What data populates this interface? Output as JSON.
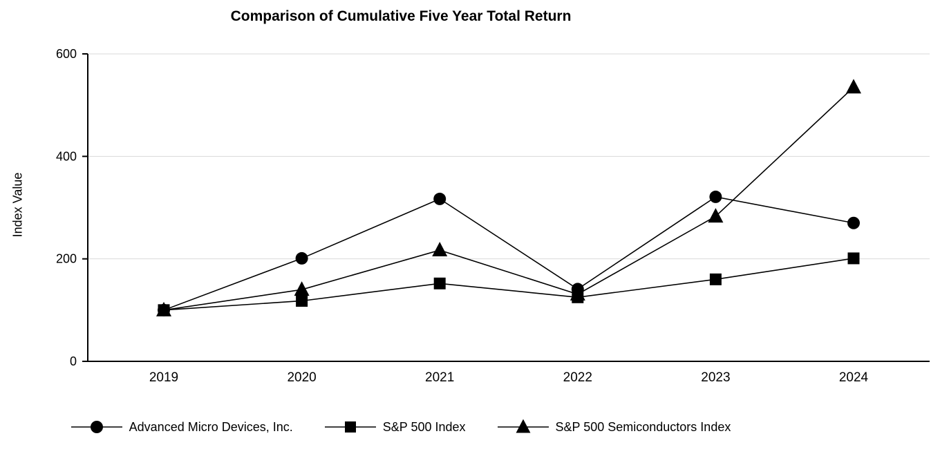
{
  "chart_data": {
    "type": "line",
    "title": "Comparison of Cumulative Five Year Total Return",
    "xlabel": "",
    "ylabel": "Index Value",
    "x": [
      2019,
      2020,
      2021,
      2022,
      2023,
      2024
    ],
    "ylim": [
      0,
      600
    ],
    "yticks": [
      0,
      200,
      400,
      600
    ],
    "grid": true,
    "legend_position": "bottom",
    "line_color": "#000000",
    "grid_color": "#d9d9d9",
    "series": [
      {
        "name": "Advanced Micro Devices, Inc.",
        "marker": "circle",
        "values": [
          100,
          201,
          317,
          141,
          321,
          270
        ]
      },
      {
        "name": "S&P 500 Index",
        "marker": "square",
        "values": [
          100,
          118,
          152,
          125,
          160,
          201
        ]
      },
      {
        "name": "S&P 500 Semiconductors Index",
        "marker": "triangle",
        "values": [
          100,
          140,
          217,
          131,
          283,
          535
        ]
      }
    ]
  }
}
